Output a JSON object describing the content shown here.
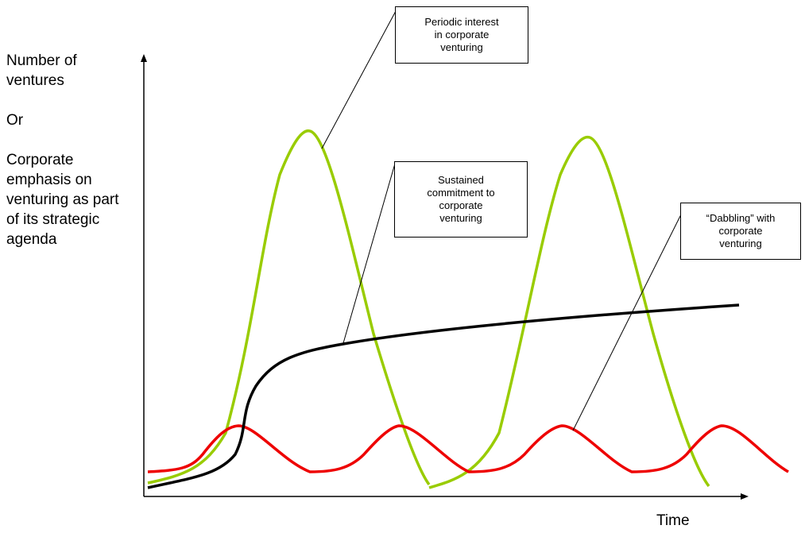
{
  "axes": {
    "y_label_lines": [
      "Number of ventures",
      "Or",
      "Corporate emphasis on venturing as part of its strategic agenda"
    ],
    "x_label": "Time"
  },
  "callouts": {
    "periodic": {
      "lines": [
        "Periodic interest",
        "in corporate",
        "venturing"
      ]
    },
    "sustained": {
      "lines": [
        "Sustained",
        "commitment to",
        "corporate",
        "venturing"
      ]
    },
    "dabbling": {
      "lines": [
        "“Dabbling” with",
        "corporate",
        "venturing"
      ]
    }
  },
  "curves": {
    "periodic_color": "#99cc00",
    "sustained_color": "#000000",
    "dabbling_color": "#ee0000"
  }
}
